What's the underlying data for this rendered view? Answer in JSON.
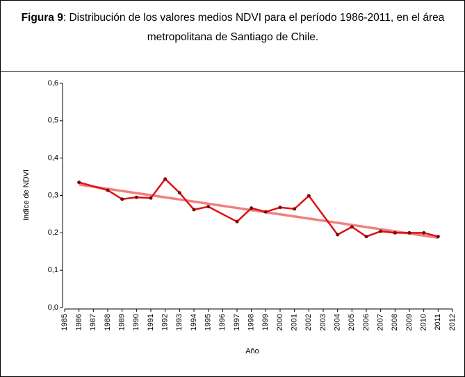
{
  "caption_label": "Figura 9",
  "caption": ": Distribución de los valores medios NDVI para el período 1986-2011, en el área metropolitana de Santiago de Chile.",
  "chart_data": {
    "type": "line",
    "x_label": "Año",
    "y_label": "Indice de NDVI",
    "xlim": [
      1985,
      2012
    ],
    "xticks": [
      1985,
      1986,
      1987,
      1988,
      1989,
      1990,
      1991,
      1992,
      1993,
      1994,
      1995,
      1996,
      1997,
      1998,
      1999,
      2000,
      2001,
      2002,
      2003,
      2004,
      2005,
      2006,
      2007,
      2008,
      2009,
      2010,
      2011,
      2012
    ],
    "ylim": [
      0,
      0.6
    ],
    "yticks": [
      {
        "value": 0,
        "label": "0,0"
      },
      {
        "value": 0.1,
        "label": "0,1"
      },
      {
        "value": 0.2,
        "label": "0,2"
      },
      {
        "value": 0.3,
        "label": "0,3"
      },
      {
        "value": 0.4,
        "label": "0,4"
      },
      {
        "value": 0.5,
        "label": "0,5"
      },
      {
        "value": 0.6,
        "label": "0,6"
      }
    ],
    "series": [
      {
        "color": "#f08080",
        "x": [
          1986,
          2011
        ],
        "values": [
          0.329,
          0.187
        ],
        "markers": false
      },
      {
        "color": "#e01010",
        "marker_color": "#7a0a0a",
        "markers": true,
        "x": [
          1986,
          1988,
          1989,
          1990,
          1991,
          1992,
          1993,
          1994,
          1995,
          1997,
          1998,
          1999,
          2000,
          2001,
          2002,
          2004,
          2005,
          2006,
          2007,
          2008,
          2009,
          2010,
          2011
        ],
        "values": [
          0.335,
          0.314,
          0.29,
          0.295,
          0.293,
          0.344,
          0.307,
          0.262,
          0.27,
          0.23,
          0.266,
          0.256,
          0.268,
          0.264,
          0.299,
          0.195,
          0.216,
          0.19,
          0.204,
          0.2,
          0.2,
          0.2,
          0.19
        ]
      }
    ]
  }
}
